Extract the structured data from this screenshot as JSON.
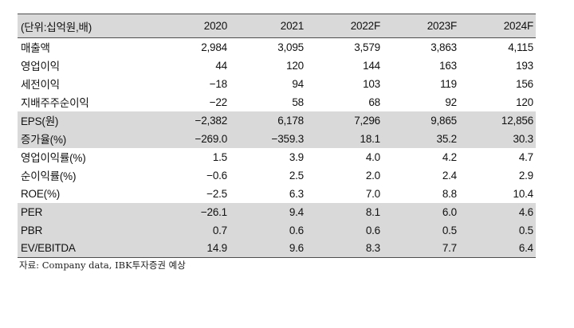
{
  "table": {
    "header": {
      "unit_label": "(단위:십억원,배)",
      "years": [
        "2020",
        "2021",
        "2022F",
        "2023F",
        "2024F"
      ]
    },
    "rows": [
      {
        "label": "매출액",
        "values": [
          "2,984",
          "3,095",
          "3,579",
          "3,863",
          "4,115"
        ],
        "shaded": false
      },
      {
        "label": "영업이익",
        "values": [
          "44",
          "120",
          "144",
          "163",
          "193"
        ],
        "shaded": false
      },
      {
        "label": "세전이익",
        "values": [
          "−18",
          "94",
          "103",
          "119",
          "156"
        ],
        "shaded": false
      },
      {
        "label": "지배주주순이익",
        "values": [
          "−22",
          "58",
          "68",
          "92",
          "120"
        ],
        "shaded": false
      },
      {
        "label": "EPS(원)",
        "values": [
          "−2,382",
          "6,178",
          "7,296",
          "9,865",
          "12,856"
        ],
        "shaded": true
      },
      {
        "label": "증가율(%)",
        "values": [
          "−269.0",
          "−359.3",
          "18.1",
          "35.2",
          "30.3"
        ],
        "shaded": true
      },
      {
        "label": "영업이익률(%)",
        "values": [
          "1.5",
          "3.9",
          "4.0",
          "4.2",
          "4.7"
        ],
        "shaded": false
      },
      {
        "label": "순이익률(%)",
        "values": [
          "−0.6",
          "2.5",
          "2.0",
          "2.4",
          "2.9"
        ],
        "shaded": false
      },
      {
        "label": "ROE(%)",
        "values": [
          "−2.5",
          "6.3",
          "7.0",
          "8.8",
          "10.4"
        ],
        "shaded": false
      },
      {
        "label": "PER",
        "values": [
          "−26.1",
          "9.4",
          "8.1",
          "6.0",
          "4.6"
        ],
        "shaded": true
      },
      {
        "label": "PBR",
        "values": [
          "0.7",
          "0.6",
          "0.6",
          "0.5",
          "0.5"
        ],
        "shaded": true
      },
      {
        "label": "EV/EBITDA",
        "values": [
          "14.9",
          "9.6",
          "8.3",
          "7.7",
          "6.4"
        ],
        "shaded": true
      }
    ]
  },
  "source_note": "자료: Company data, IBK투자증권 예상",
  "colors": {
    "shade": "#d9d9d9",
    "rule": "#4d4d4d",
    "text": "#111111"
  }
}
